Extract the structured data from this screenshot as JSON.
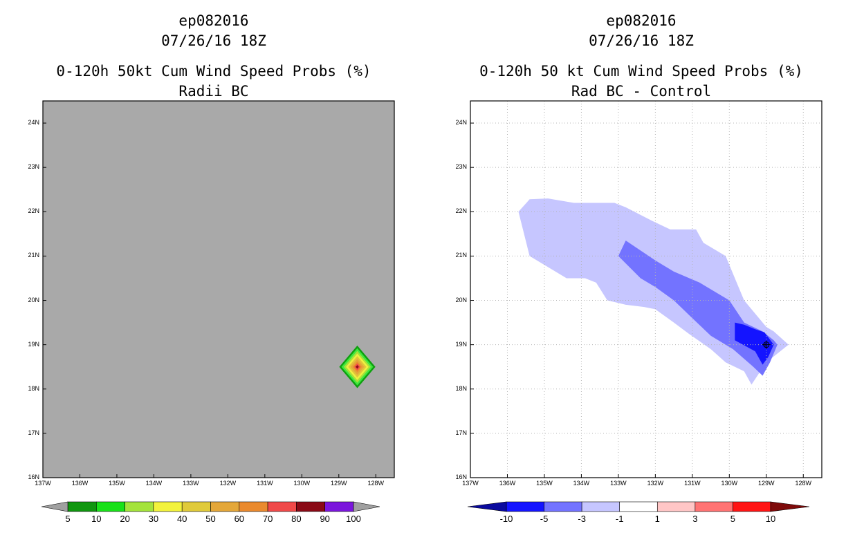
{
  "left_panel": {
    "title_line1": "ep082016",
    "title_line2": "07/26/16 18Z",
    "title_line3": "0-120h 50kt Cum Wind Speed Probs (%)",
    "title_line4": "Radii BC"
  },
  "right_panel": {
    "title_line1": "ep082016",
    "title_line2": "07/26/16 18Z",
    "title_line3": "0-120h 50 kt Cum Wind Speed Probs (%)",
    "title_line4": "Rad BC - Control"
  },
  "chart_data": [
    {
      "type": "heatmap",
      "title": "0-120h 50kt Cum Wind Speed Probs (%)",
      "subtitle": "Radii BC",
      "background_color": "#a9a9a9",
      "xlim": [
        -137,
        -127.5
      ],
      "ylim": [
        16,
        24.5
      ],
      "x_ticks": [
        {
          "value": -137,
          "label": "137W"
        },
        {
          "value": -136,
          "label": "136W"
        },
        {
          "value": -135,
          "label": "135W"
        },
        {
          "value": -134,
          "label": "134W"
        },
        {
          "value": -133,
          "label": "133W"
        },
        {
          "value": -132,
          "label": "132W"
        },
        {
          "value": -131,
          "label": "131W"
        },
        {
          "value": -130,
          "label": "130W"
        },
        {
          "value": -129,
          "label": "129W"
        },
        {
          "value": -128,
          "label": "128W"
        }
      ],
      "y_ticks": [
        {
          "value": 16,
          "label": "16N"
        },
        {
          "value": 17,
          "label": "17N"
        },
        {
          "value": 18,
          "label": "18N"
        },
        {
          "value": 19,
          "label": "19N"
        },
        {
          "value": 20,
          "label": "20N"
        },
        {
          "value": 21,
          "label": "21N"
        },
        {
          "value": 22,
          "label": "22N"
        },
        {
          "value": 23,
          "label": "23N"
        },
        {
          "value": 24,
          "label": "24N"
        }
      ],
      "grid": false,
      "feature": {
        "center_lon": -128.5,
        "center_lat": 18.5,
        "layers": [
          {
            "half_width_deg": 0.48,
            "color": "#0fa00f"
          },
          {
            "half_width_deg": 0.42,
            "color": "#3fe83f"
          },
          {
            "half_width_deg": 0.36,
            "color": "#a6e23a"
          },
          {
            "half_width_deg": 0.3,
            "color": "#f0f040"
          },
          {
            "half_width_deg": 0.24,
            "color": "#e2c43a"
          },
          {
            "half_width_deg": 0.18,
            "color": "#e4a63a"
          },
          {
            "half_width_deg": 0.12,
            "color": "#ec8a2e"
          },
          {
            "half_width_deg": 0.08,
            "color": "#ee4a4a"
          },
          {
            "half_width_deg": 0.04,
            "color": "#8b0a16"
          }
        ]
      },
      "colorbar": {
        "labels": [
          "5",
          "10",
          "20",
          "30",
          "40",
          "50",
          "60",
          "70",
          "80",
          "90",
          "100"
        ],
        "colors": [
          "#10960f",
          "#19e119",
          "#a4e33b",
          "#f2f23c",
          "#e0ca3a",
          "#e4a739",
          "#ea8a2e",
          "#f04949",
          "#8a0a16",
          "#7b16dc"
        ],
        "end_low_color": "#a0a0a0",
        "end_high_color": "#a0a0a0"
      }
    },
    {
      "type": "heatmap",
      "title": "0-120h 50 kt Cum Wind Speed Probs (%)",
      "subtitle": "Rad BC - Control",
      "background_color": "#ffffff",
      "xlim": [
        -137,
        -127.5
      ],
      "ylim": [
        16,
        24.5
      ],
      "x_ticks": [
        {
          "value": -137,
          "label": "137W"
        },
        {
          "value": -136,
          "label": "136W"
        },
        {
          "value": -135,
          "label": "135W"
        },
        {
          "value": -134,
          "label": "134W"
        },
        {
          "value": -133,
          "label": "133W"
        },
        {
          "value": -132,
          "label": "132W"
        },
        {
          "value": -131,
          "label": "131W"
        },
        {
          "value": -130,
          "label": "130W"
        },
        {
          "value": -129,
          "label": "129W"
        },
        {
          "value": -128,
          "label": "128W"
        }
      ],
      "y_ticks": [
        {
          "value": 16,
          "label": "16N"
        },
        {
          "value": 17,
          "label": "17N"
        },
        {
          "value": 18,
          "label": "18N"
        },
        {
          "value": 19,
          "label": "19N"
        },
        {
          "value": 20,
          "label": "20N"
        },
        {
          "value": 21,
          "label": "21N"
        },
        {
          "value": 22,
          "label": "22N"
        },
        {
          "value": 23,
          "label": "23N"
        },
        {
          "value": 24,
          "label": "24N"
        }
      ],
      "grid": true,
      "contours": [
        {
          "level": "-3 to -1",
          "color": "#c6c6ff",
          "lonlat": [
            [
              -135.7,
              22.0
            ],
            [
              -135.4,
              22.28
            ],
            [
              -134.9,
              22.3
            ],
            [
              -134.2,
              22.2
            ],
            [
              -133.1,
              22.2
            ],
            [
              -132.8,
              22.1
            ],
            [
              -132.1,
              21.8
            ],
            [
              -131.6,
              21.6
            ],
            [
              -130.9,
              21.6
            ],
            [
              -130.7,
              21.3
            ],
            [
              -130.1,
              21.0
            ],
            [
              -129.8,
              20.4
            ],
            [
              -129.6,
              20.0
            ],
            [
              -129.0,
              19.4
            ],
            [
              -128.8,
              19.3
            ],
            [
              -128.4,
              19.0
            ],
            [
              -129.0,
              18.6
            ],
            [
              -129.4,
              18.1
            ],
            [
              -129.6,
              18.4
            ],
            [
              -130.1,
              18.6
            ],
            [
              -130.5,
              18.9
            ],
            [
              -131.1,
              19.25
            ],
            [
              -131.5,
              19.5
            ],
            [
              -132.0,
              19.8
            ],
            [
              -132.3,
              19.85
            ],
            [
              -132.8,
              19.9
            ],
            [
              -133.3,
              20.0
            ],
            [
              -133.6,
              20.4
            ],
            [
              -133.9,
              20.5
            ],
            [
              -134.4,
              20.5
            ],
            [
              -134.8,
              20.7
            ],
            [
              -135.4,
              21.0
            ],
            [
              -135.7,
              22.0
            ]
          ]
        },
        {
          "level": "-5 to -3",
          "color": "#7373ff",
          "lonlat": [
            [
              -133.0,
              21.0
            ],
            [
              -132.8,
              21.35
            ],
            [
              -132.0,
              20.9
            ],
            [
              -131.5,
              20.65
            ],
            [
              -130.8,
              20.4
            ],
            [
              -130.0,
              20.0
            ],
            [
              -129.6,
              19.5
            ],
            [
              -129.1,
              19.3
            ],
            [
              -128.8,
              19.1
            ],
            [
              -128.7,
              19.0
            ],
            [
              -128.9,
              18.6
            ],
            [
              -129.1,
              18.3
            ],
            [
              -129.35,
              18.5
            ],
            [
              -129.9,
              18.9
            ],
            [
              -130.5,
              19.2
            ],
            [
              -131.0,
              19.6
            ],
            [
              -131.5,
              20.0
            ],
            [
              -132.0,
              20.3
            ],
            [
              -132.4,
              20.5
            ],
            [
              -133.0,
              21.0
            ]
          ]
        },
        {
          "level": "-10 to -5",
          "color": "#1414ff",
          "lonlat": [
            [
              -129.85,
              19.5
            ],
            [
              -129.6,
              19.45
            ],
            [
              -129.3,
              19.35
            ],
            [
              -129.05,
              19.28
            ],
            [
              -128.8,
              19.0
            ],
            [
              -128.95,
              18.72
            ],
            [
              -129.1,
              18.55
            ],
            [
              -129.3,
              18.85
            ],
            [
              -129.85,
              19.1
            ],
            [
              -129.85,
              19.5
            ]
          ]
        },
        {
          "level": "< -10",
          "color": "#0a0a9e",
          "lonlat": [
            [
              -129.02,
              19.05
            ],
            [
              -128.96,
              19.0
            ],
            [
              -129.02,
              18.95
            ],
            [
              -129.08,
              19.0
            ],
            [
              -129.02,
              19.05
            ]
          ]
        }
      ],
      "colorbar": {
        "labels": [
          "-10",
          "-5",
          "-3",
          "-1",
          "1",
          "3",
          "5",
          "10"
        ],
        "colors": [
          "#1414ff",
          "#7373ff",
          "#c6c6ff",
          "#ffffff",
          "#ffc6c6",
          "#ff7373",
          "#ff1414"
        ],
        "end_low_color": "#0a0a9e",
        "end_high_color": "#7e0a0a"
      }
    }
  ]
}
